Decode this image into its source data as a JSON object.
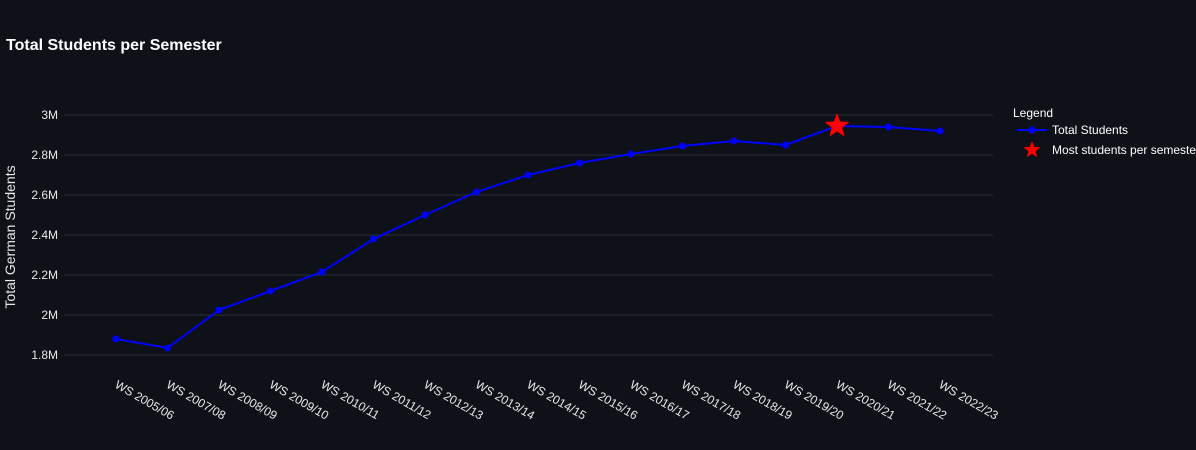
{
  "chart_data": {
    "type": "line",
    "title": "Total Students per Semester",
    "xlabel": "",
    "ylabel": "Total German Students",
    "ylim": [
      1750000,
      3100000
    ],
    "yticks": [
      1800000,
      2000000,
      2200000,
      2400000,
      2600000,
      2800000,
      3000000
    ],
    "ytick_labels": [
      "1.8M",
      "2M",
      "2.2M",
      "2.4M",
      "2.6M",
      "2.8M",
      "3M"
    ],
    "categories": [
      "WS 2005/06",
      "WS 2007/08",
      "WS 2008/09",
      "WS 2009/10",
      "WS 2010/11",
      "WS 2011/12",
      "WS 2012/13",
      "WS 2013/14",
      "WS 2014/15",
      "WS 2015/16",
      "WS 2016/17",
      "WS 2017/18",
      "WS 2018/19",
      "WS 2019/20",
      "WS 2020/21",
      "WS 2021/22",
      "WS 2022/23"
    ],
    "series": [
      {
        "name": "Total Students",
        "color": "#0000ff",
        "values": [
          1880000,
          1835000,
          2025000,
          2120000,
          2215000,
          2380000,
          2500000,
          2615000,
          2700000,
          2760000,
          2805000,
          2845000,
          2870000,
          2850000,
          2945000,
          2940000,
          2920000
        ]
      }
    ],
    "highlight": {
      "name": "Most students per semester",
      "category": "WS 2020/21",
      "value": 2945000,
      "color": "#ff0000",
      "marker": "star"
    },
    "legend": {
      "title": "Legend",
      "placement": "right"
    },
    "grid": true
  }
}
